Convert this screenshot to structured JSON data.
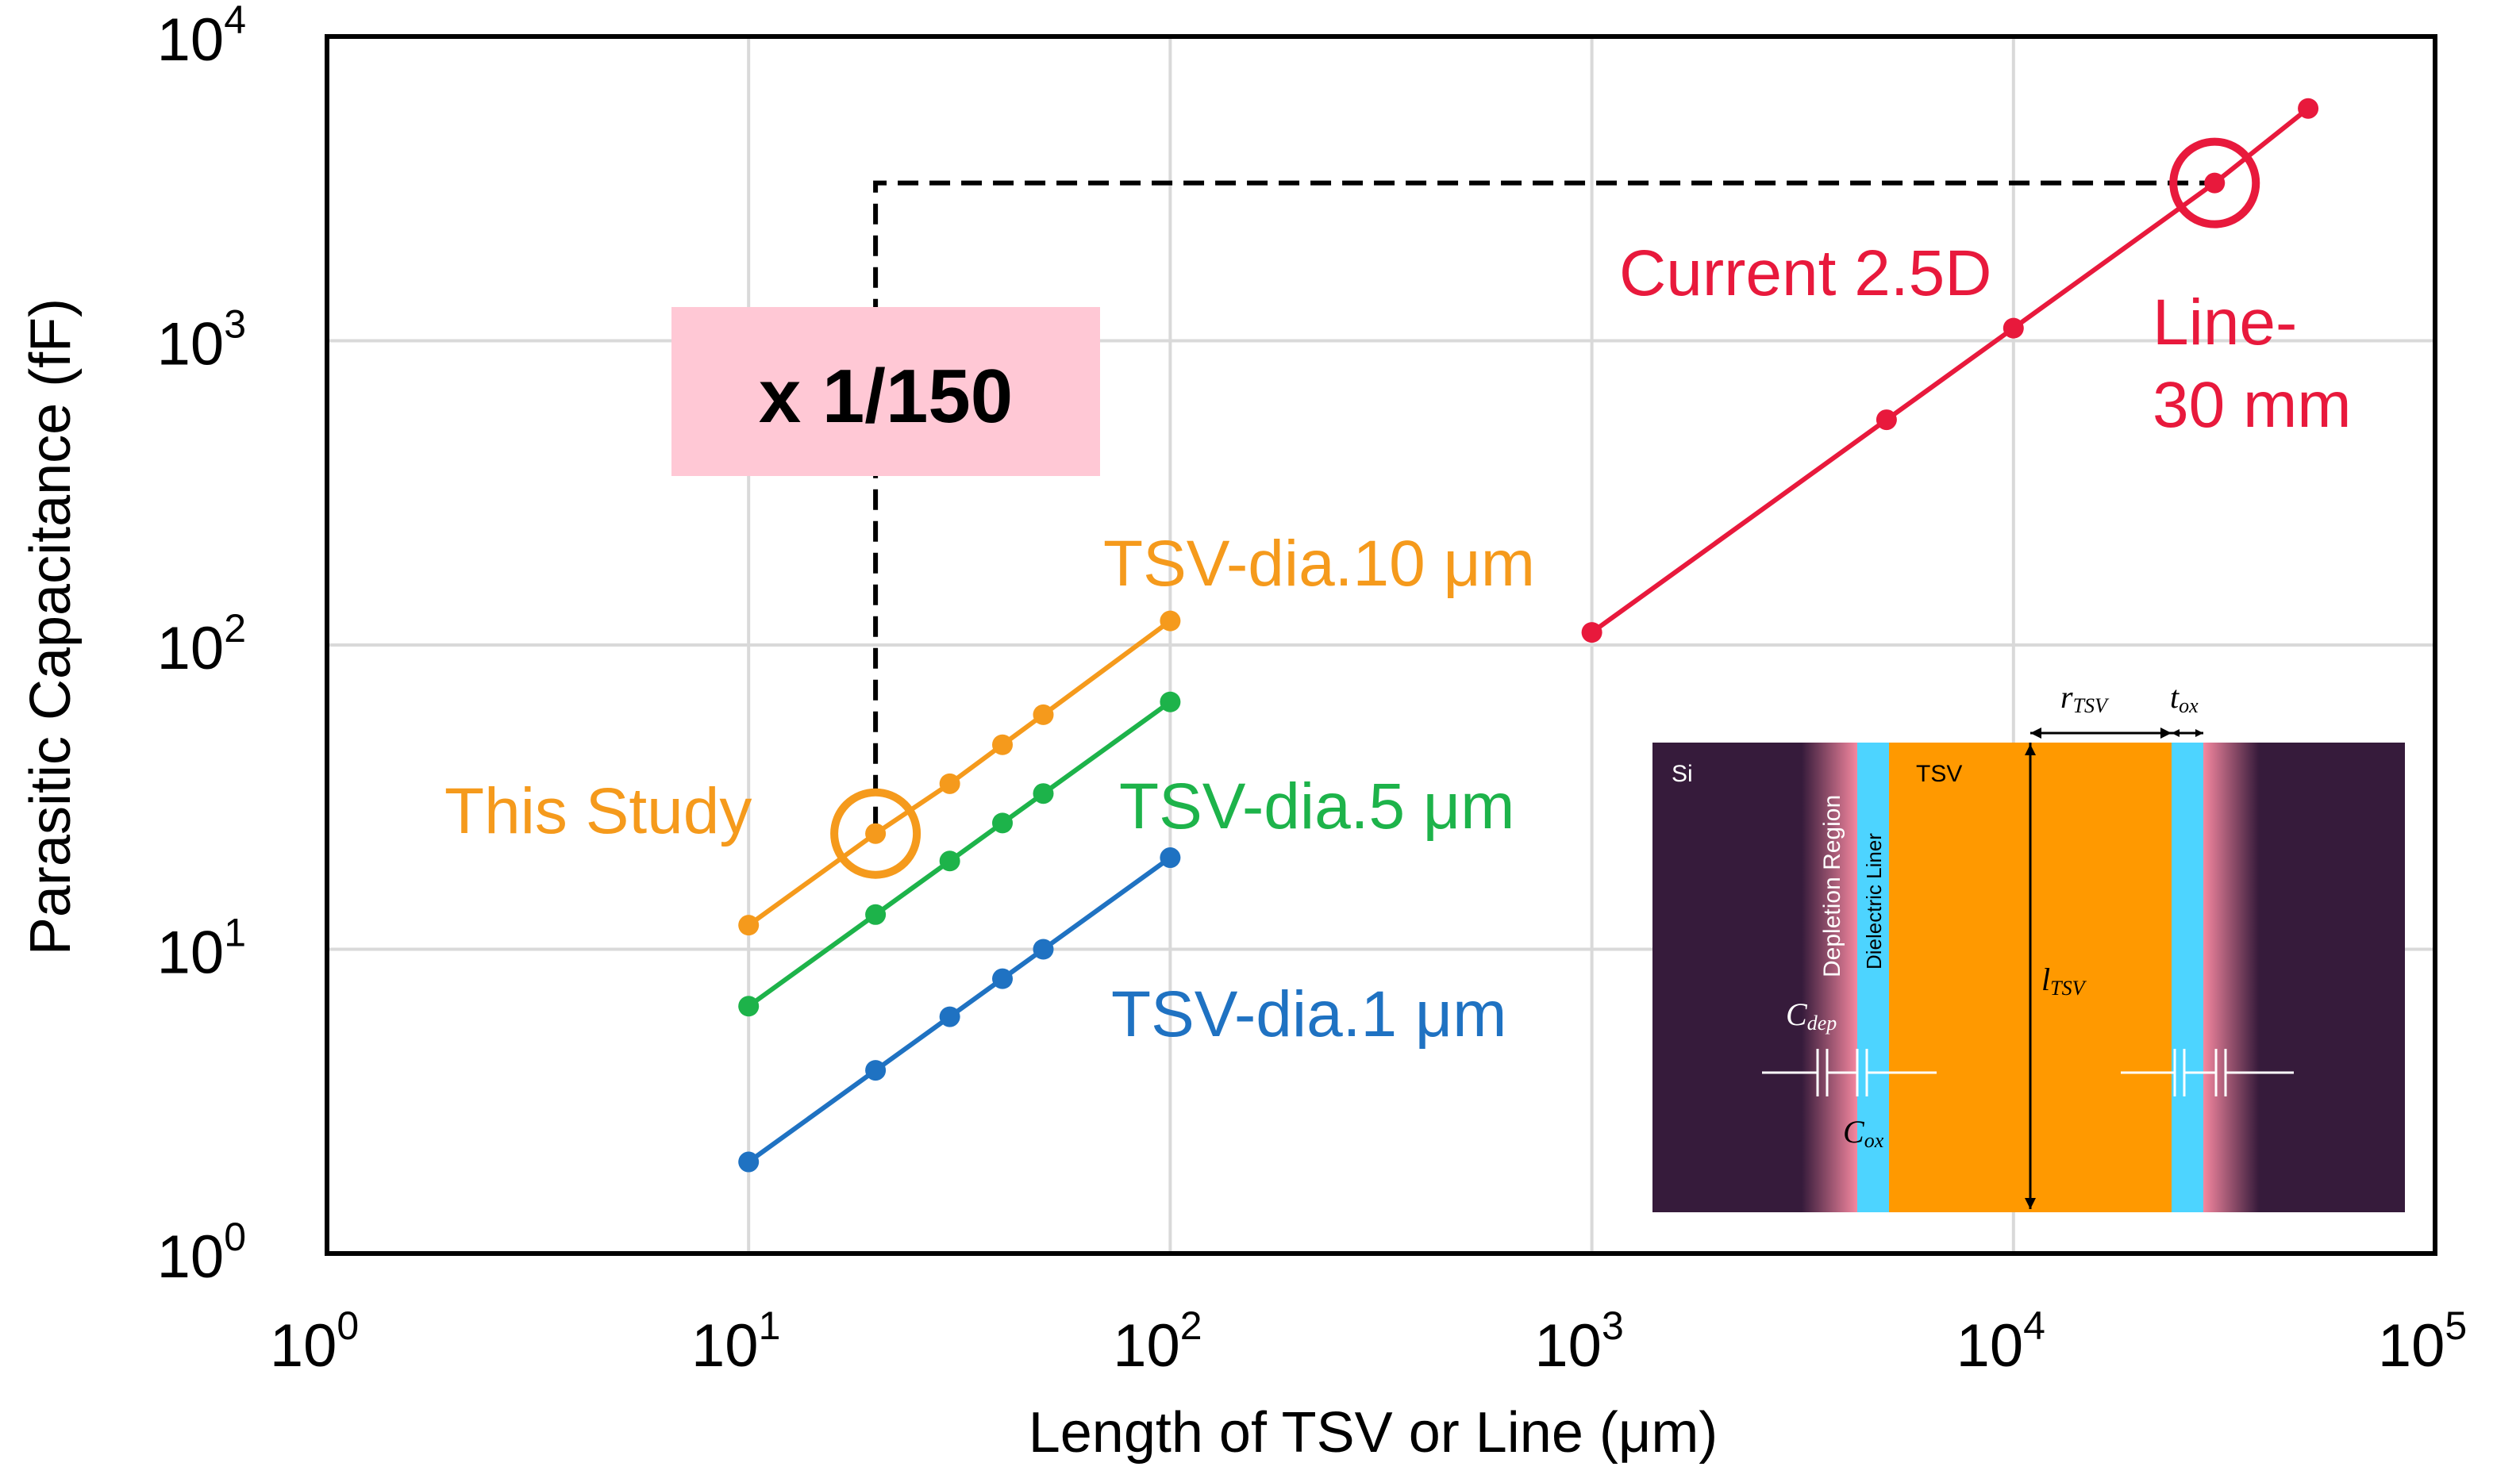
{
  "chart_data": {
    "type": "line",
    "x_scale": "log",
    "y_scale": "log",
    "xlim": [
      1,
      100000
    ],
    "ylim": [
      1,
      10000
    ],
    "grid": true,
    "xlabel": "Length of TSV or Line (μm)",
    "ylabel": "Parasitic Capacitance (fF)",
    "tick_base": "10",
    "x_tick_exponents": [
      "0",
      "1",
      "2",
      "3",
      "4",
      "5"
    ],
    "y_tick_exponents": [
      "0",
      "1",
      "2",
      "3",
      "4"
    ],
    "series": [
      {
        "name": "TSV-dia.10 μm",
        "color": "#F59A1C",
        "x": [
          10,
          20,
          30,
          40,
          50,
          100
        ],
        "y": [
          12,
          24,
          35,
          47,
          59,
          120
        ]
      },
      {
        "name": "TSV-dia.5 μm",
        "color": "#1DB34A",
        "x": [
          10,
          20,
          30,
          40,
          50,
          100
        ],
        "y": [
          6.5,
          13,
          19.5,
          26,
          32.5,
          65
        ]
      },
      {
        "name": "TSV-dia.1 μm",
        "color": "#1F72C2",
        "x": [
          10,
          20,
          30,
          40,
          50,
          100
        ],
        "y": [
          2,
          4,
          6,
          8,
          10,
          20
        ]
      },
      {
        "name": "Current 2.5D",
        "color": "#E8193C",
        "x": [
          1000,
          5000,
          10000,
          30000,
          50000
        ],
        "y": [
          110,
          550,
          1100,
          3300,
          5800
        ]
      }
    ],
    "highlights": [
      {
        "label": "This Study",
        "x": 20,
        "y": 24,
        "color": "#F59A1C"
      },
      {
        "label_lines": [
          "Line-",
          "30 mm"
        ],
        "x": 30000,
        "y": 3300,
        "color": "#E8193C"
      }
    ],
    "reference_line": {
      "x": 20,
      "y": 3300
    },
    "ratio_label": "x 1/150",
    "ratio_box_color": "#FFC8D5"
  },
  "inset": {
    "si_label": "Si",
    "tsv_label": "TSV",
    "depletion_label": "Depletion Region",
    "liner_label": "Dielectric Liner",
    "r_symbol": "r",
    "r_sub": "TSV",
    "t_symbol": "t",
    "t_sub": "ox",
    "l_symbol": "l",
    "l_sub": "TSV",
    "cdep_symbol": "C",
    "cdep_sub": "dep",
    "cox_symbol": "C",
    "cox_sub": "ox",
    "colors": {
      "si": "#361B3B",
      "depletion": "#F4879F",
      "liner": "#4DD4FF",
      "tsv": "#FF9900"
    }
  }
}
